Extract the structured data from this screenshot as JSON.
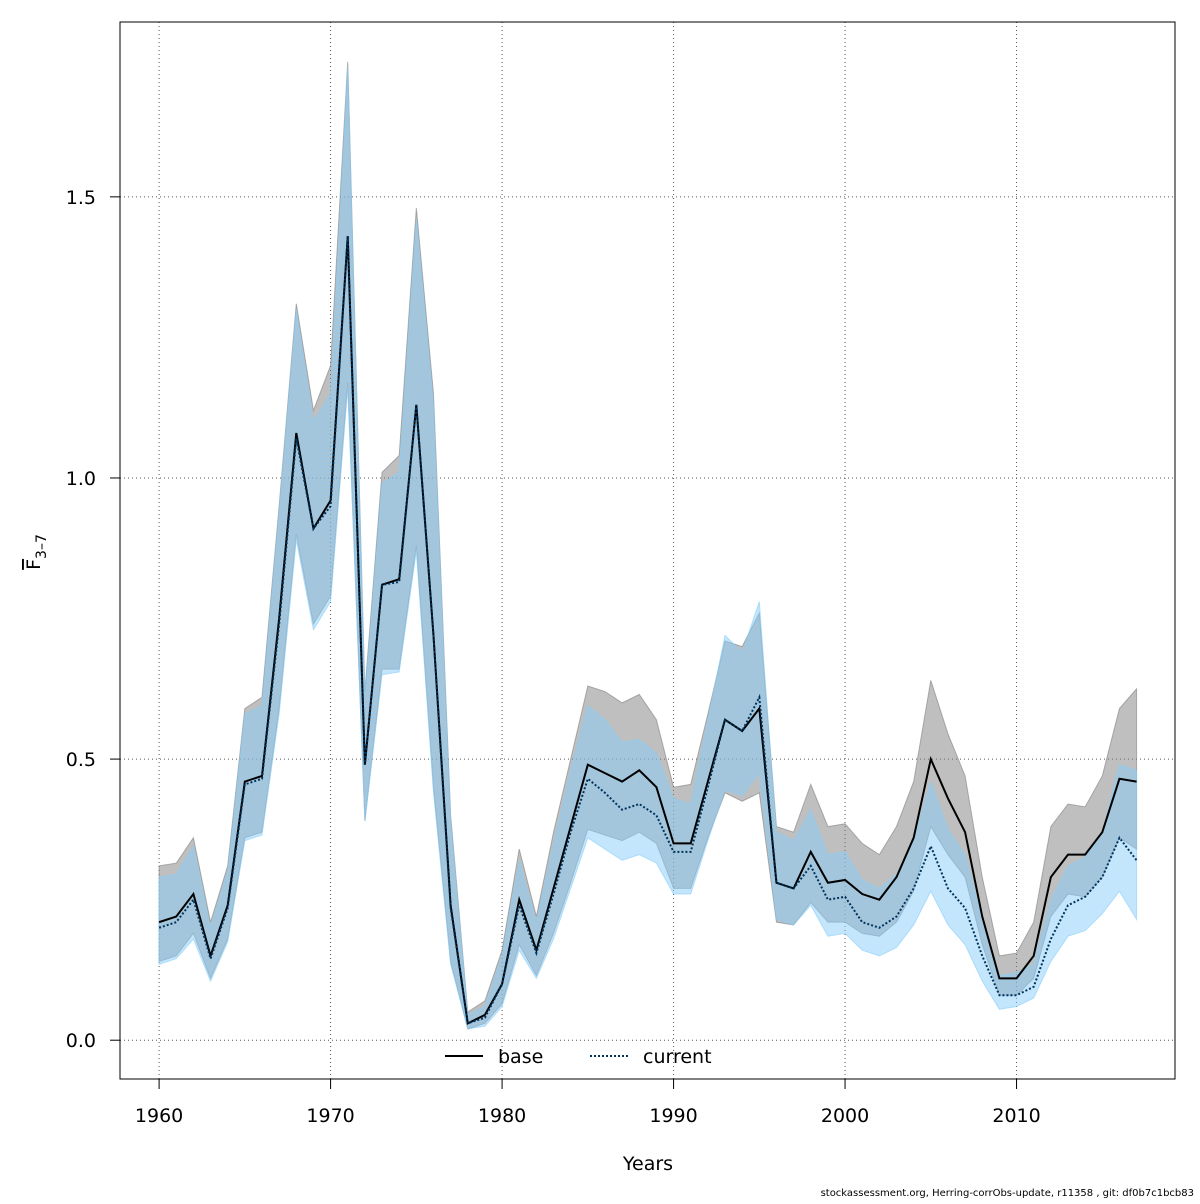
{
  "chart_data": {
    "type": "line",
    "xlabel": "Years",
    "ylabel": {
      "text": "F",
      "subscript": "3–7"
    },
    "footer": "stockassessment.org, Herring-corrObs-update, r11358 , git: df0b7c1bcb83",
    "x": [
      1960,
      1961,
      1962,
      1963,
      1964,
      1965,
      1966,
      1967,
      1968,
      1969,
      1970,
      1971,
      1972,
      1973,
      1974,
      1975,
      1976,
      1977,
      1978,
      1979,
      1980,
      1981,
      1982,
      1983,
      1984,
      1985,
      1986,
      1987,
      1988,
      1989,
      1990,
      1991,
      1992,
      1993,
      1994,
      1995,
      1996,
      1997,
      1998,
      1999,
      2000,
      2001,
      2002,
      2003,
      2004,
      2005,
      2006,
      2007,
      2008,
      2009,
      2010,
      2011,
      2012,
      2013,
      2014,
      2015,
      2016,
      2017
    ],
    "xlim": [
      1957.72,
      2019.24
    ],
    "xticks": [
      1960,
      1970,
      1980,
      1990,
      2000,
      2010
    ],
    "ylim": [
      -0.069,
      1.811
    ],
    "yticks": [
      {
        "value": 0,
        "label": "0.0"
      },
      0.5,
      {
        "value": 1,
        "label": "1.0"
      },
      1.5
    ],
    "grid": true,
    "legend": "bottom",
    "series": [
      {
        "name": "base",
        "color": "#000000",
        "linestyle": "solid",
        "band_color": "#808080",
        "values": [
          0.21,
          0.22,
          0.26,
          0.15,
          0.24,
          0.46,
          0.47,
          0.75,
          1.08,
          0.91,
          0.96,
          1.43,
          0.49,
          0.81,
          0.82,
          1.13,
          0.72,
          0.24,
          0.03,
          0.045,
          0.1,
          0.25,
          0.16,
          0.27,
          0.38,
          0.49,
          0.475,
          0.46,
          0.48,
          0.45,
          0.35,
          0.35,
          0.46,
          0.57,
          0.55,
          0.59,
          0.28,
          0.27,
          0.335,
          0.28,
          0.285,
          0.26,
          0.25,
          0.29,
          0.36,
          0.5,
          0.43,
          0.37,
          0.22,
          0.11,
          0.11,
          0.15,
          0.29,
          0.33,
          0.33,
          0.37,
          0.465,
          0.46
        ],
        "upper": [
          0.31,
          0.315,
          0.36,
          0.21,
          0.31,
          0.59,
          0.61,
          0.95,
          1.31,
          1.12,
          1.2,
          1.74,
          0.62,
          1.01,
          1.04,
          1.48,
          1.15,
          0.4,
          0.05,
          0.07,
          0.16,
          0.34,
          0.22,
          0.37,
          0.5,
          0.63,
          0.62,
          0.6,
          0.615,
          0.57,
          0.45,
          0.455,
          0.58,
          0.71,
          0.7,
          0.76,
          0.38,
          0.37,
          0.455,
          0.38,
          0.385,
          0.35,
          0.33,
          0.38,
          0.46,
          0.64,
          0.545,
          0.47,
          0.29,
          0.15,
          0.155,
          0.21,
          0.38,
          0.42,
          0.415,
          0.47,
          0.59,
          0.625
        ],
        "lower": [
          0.14,
          0.15,
          0.19,
          0.11,
          0.18,
          0.36,
          0.37,
          0.59,
          0.9,
          0.74,
          0.79,
          1.17,
          0.39,
          0.66,
          0.66,
          0.88,
          0.45,
          0.14,
          0.02,
          0.03,
          0.065,
          0.17,
          0.115,
          0.19,
          0.28,
          0.375,
          0.365,
          0.355,
          0.37,
          0.35,
          0.27,
          0.27,
          0.36,
          0.44,
          0.425,
          0.44,
          0.21,
          0.205,
          0.245,
          0.21,
          0.21,
          0.19,
          0.185,
          0.21,
          0.265,
          0.38,
          0.33,
          0.29,
          0.17,
          0.08,
          0.08,
          0.11,
          0.22,
          0.26,
          0.255,
          0.29,
          0.36,
          0.34
        ]
      },
      {
        "name": "current",
        "color": "#00335c",
        "linestyle": "dotted",
        "band_color": "#87cefa",
        "values": [
          0.2,
          0.21,
          0.25,
          0.145,
          0.235,
          0.455,
          0.465,
          0.74,
          1.07,
          0.91,
          0.95,
          1.43,
          0.49,
          0.81,
          0.815,
          1.13,
          0.72,
          0.235,
          0.03,
          0.04,
          0.1,
          0.24,
          0.155,
          0.26,
          0.37,
          0.465,
          0.44,
          0.41,
          0.42,
          0.4,
          0.335,
          0.335,
          0.45,
          0.57,
          0.55,
          0.61,
          0.28,
          0.27,
          0.31,
          0.25,
          0.255,
          0.21,
          0.2,
          0.22,
          0.27,
          0.345,
          0.27,
          0.235,
          0.15,
          0.08,
          0.08,
          0.095,
          0.18,
          0.24,
          0.255,
          0.29,
          0.36,
          0.32
        ],
        "upper": [
          0.29,
          0.295,
          0.345,
          0.2,
          0.3,
          0.58,
          0.595,
          0.94,
          1.3,
          1.1,
          1.15,
          1.73,
          0.61,
          0.99,
          1.01,
          1.46,
          1.13,
          0.39,
          0.045,
          0.06,
          0.15,
          0.32,
          0.21,
          0.35,
          0.48,
          0.595,
          0.57,
          0.53,
          0.535,
          0.51,
          0.43,
          0.42,
          0.57,
          0.72,
          0.69,
          0.78,
          0.37,
          0.355,
          0.41,
          0.33,
          0.335,
          0.285,
          0.27,
          0.295,
          0.355,
          0.46,
          0.375,
          0.33,
          0.215,
          0.115,
          0.12,
          0.135,
          0.25,
          0.31,
          0.325,
          0.37,
          0.49,
          0.48
        ],
        "lower": [
          0.135,
          0.145,
          0.18,
          0.105,
          0.175,
          0.355,
          0.365,
          0.58,
          0.89,
          0.73,
          0.78,
          1.16,
          0.39,
          0.65,
          0.655,
          0.87,
          0.44,
          0.135,
          0.02,
          0.025,
          0.06,
          0.16,
          0.11,
          0.18,
          0.27,
          0.36,
          0.34,
          0.32,
          0.33,
          0.315,
          0.26,
          0.26,
          0.355,
          0.445,
          0.435,
          0.475,
          0.215,
          0.205,
          0.24,
          0.185,
          0.19,
          0.16,
          0.15,
          0.165,
          0.205,
          0.265,
          0.205,
          0.17,
          0.105,
          0.055,
          0.06,
          0.075,
          0.14,
          0.185,
          0.195,
          0.225,
          0.265,
          0.215
        ]
      }
    ]
  }
}
